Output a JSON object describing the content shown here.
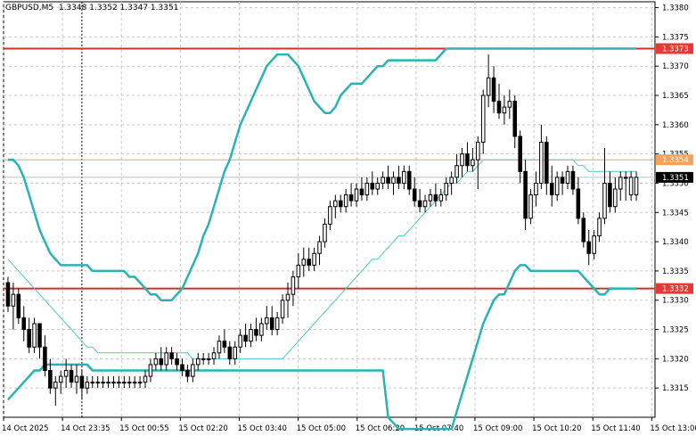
{
  "title": "GBPUSD,M5  1.3348 1.3352 1.3347 1.3351",
  "chart_data": {
    "type": "candlestick",
    "symbol": "GBPUSD",
    "timeframe": "M5",
    "ohlc_header": {
      "open": 1.3348,
      "high": 1.3352,
      "low": 1.3347,
      "close": 1.3351
    },
    "ylim": [
      1.331,
      1.3381
    ],
    "y_ticks": [
      "1.3315",
      "1.3320",
      "1.3325",
      "1.3330",
      "1.3335",
      "1.3340",
      "1.3345",
      "1.3350",
      "1.3355",
      "1.3360",
      "1.3365",
      "1.3370",
      "1.3375",
      "1.3380"
    ],
    "x_ticks": [
      "14 Oct 2025",
      "14 Oct 23:35",
      "15 Oct 00:55",
      "15 Oct 02:20",
      "15 Oct 03:40",
      "15 Oct 05:00",
      "15 Oct 06:20",
      "15 Oct 07:40",
      "15 Oct 09:00",
      "15 Oct 10:20",
      "15 Oct 11:40",
      "15 Oct 13:00"
    ],
    "bar_count": 120,
    "price_labels": [
      {
        "value": 1.3373,
        "text": "1.3373",
        "color": "#e53935"
      },
      {
        "value": 1.3354,
        "text": "1.3354",
        "color": "#f5a25d"
      },
      {
        "value": 1.3351,
        "text": "1.3351",
        "color": "#000000"
      },
      {
        "value": 1.3332,
        "text": "1.3332",
        "color": "#e53935"
      }
    ],
    "levels": [
      {
        "value": 1.3373,
        "color": "#d32f2f",
        "width": 2
      },
      {
        "value": 1.3354,
        "color": "#f5a25d",
        "width": 1
      },
      {
        "value": 1.3351,
        "color": "#b0c4c8",
        "width": 1
      },
      {
        "value": 1.3332,
        "color": "#d32f2f",
        "width": 2
      }
    ],
    "crosshair_bar": 14,
    "candles": [
      [
        1.3333,
        1.3334,
        1.3328,
        1.3329
      ],
      [
        1.3329,
        1.3333,
        1.3325,
        1.3331
      ],
      [
        1.3331,
        1.3332,
        1.3326,
        1.3327
      ],
      [
        1.3327,
        1.3329,
        1.3323,
        1.3325
      ],
      [
        1.3325,
        1.3327,
        1.3321,
        1.3322
      ],
      [
        1.3322,
        1.3327,
        1.3321,
        1.3326
      ],
      [
        1.3326,
        1.3326,
        1.332,
        1.3322
      ],
      [
        1.3322,
        1.3324,
        1.3317,
        1.3318
      ],
      [
        1.3318,
        1.332,
        1.3314,
        1.3315
      ],
      [
        1.3315,
        1.3317,
        1.3312,
        1.3316
      ],
      [
        1.3316,
        1.3318,
        1.3314,
        1.3317
      ],
      [
        1.3317,
        1.332,
        1.3315,
        1.3318
      ],
      [
        1.3318,
        1.3319,
        1.3315,
        1.3316
      ],
      [
        1.3316,
        1.3319,
        1.3314,
        1.3317
      ],
      [
        1.3317,
        1.3318,
        1.3313,
        1.3315
      ],
      [
        1.3315,
        1.3317,
        1.3314,
        1.3316
      ],
      [
        1.3316,
        1.3317,
        1.3315,
        1.3316
      ],
      [
        1.3316,
        1.3317,
        1.3315,
        1.3316
      ],
      [
        1.3316,
        1.3317,
        1.3315,
        1.3316
      ],
      [
        1.3316,
        1.3317,
        1.3315,
        1.3316
      ],
      [
        1.3316,
        1.3317,
        1.3315,
        1.3316
      ],
      [
        1.3316,
        1.3317,
        1.3315,
        1.3316
      ],
      [
        1.3316,
        1.3317,
        1.3315,
        1.3316
      ],
      [
        1.3316,
        1.3317,
        1.3315,
        1.3316
      ],
      [
        1.3316,
        1.3317,
        1.3315,
        1.3316
      ],
      [
        1.3316,
        1.3317,
        1.3315,
        1.3316
      ],
      [
        1.3316,
        1.3318,
        1.3315,
        1.3317
      ],
      [
        1.3317,
        1.332,
        1.3316,
        1.3319
      ],
      [
        1.3319,
        1.3321,
        1.3318,
        1.332
      ],
      [
        1.332,
        1.3322,
        1.3318,
        1.3319
      ],
      [
        1.3319,
        1.3322,
        1.3318,
        1.3321
      ],
      [
        1.3321,
        1.3322,
        1.3319,
        1.332
      ],
      [
        1.332,
        1.3321,
        1.3318,
        1.3319
      ],
      [
        1.3319,
        1.332,
        1.3317,
        1.3318
      ],
      [
        1.3318,
        1.3319,
        1.3316,
        1.3317
      ],
      [
        1.3317,
        1.332,
        1.3316,
        1.3319
      ],
      [
        1.3319,
        1.3321,
        1.3318,
        1.332
      ],
      [
        1.332,
        1.3321,
        1.3319,
        1.332
      ],
      [
        1.332,
        1.3321,
        1.3319,
        1.332
      ],
      [
        1.332,
        1.3322,
        1.3319,
        1.3321
      ],
      [
        1.3321,
        1.3324,
        1.332,
        1.3323
      ],
      [
        1.3323,
        1.3325,
        1.3321,
        1.3322
      ],
      [
        1.3322,
        1.3323,
        1.3319,
        1.332
      ],
      [
        1.332,
        1.3323,
        1.3319,
        1.3322
      ],
      [
        1.3322,
        1.3325,
        1.3321,
        1.3324
      ],
      [
        1.3324,
        1.3326,
        1.3322,
        1.3323
      ],
      [
        1.3323,
        1.3326,
        1.3322,
        1.3325
      ],
      [
        1.3325,
        1.3327,
        1.3323,
        1.3324
      ],
      [
        1.3324,
        1.3327,
        1.3323,
        1.3326
      ],
      [
        1.3326,
        1.3329,
        1.3325,
        1.3327
      ],
      [
        1.3327,
        1.3329,
        1.3324,
        1.3325
      ],
      [
        1.3325,
        1.3328,
        1.3324,
        1.3327
      ],
      [
        1.3327,
        1.3331,
        1.3326,
        1.333
      ],
      [
        1.333,
        1.3333,
        1.3327,
        1.3331
      ],
      [
        1.3331,
        1.3335,
        1.3329,
        1.3334
      ],
      [
        1.3334,
        1.3338,
        1.3332,
        1.3336
      ],
      [
        1.3336,
        1.3339,
        1.3334,
        1.3337
      ],
      [
        1.3337,
        1.3339,
        1.3335,
        1.3336
      ],
      [
        1.3336,
        1.3339,
        1.3335,
        1.3338
      ],
      [
        1.3338,
        1.3341,
        1.3336,
        1.334
      ],
      [
        1.334,
        1.3344,
        1.3339,
        1.3343
      ],
      [
        1.3343,
        1.3347,
        1.3342,
        1.3346
      ],
      [
        1.3346,
        1.3348,
        1.3344,
        1.3347
      ],
      [
        1.3347,
        1.3348,
        1.3345,
        1.3346
      ],
      [
        1.3346,
        1.3349,
        1.3345,
        1.3348
      ],
      [
        1.3348,
        1.335,
        1.3346,
        1.3347
      ],
      [
        1.3347,
        1.335,
        1.3346,
        1.3349
      ],
      [
        1.3349,
        1.3351,
        1.3347,
        1.3348
      ],
      [
        1.3348,
        1.3351,
        1.3347,
        1.335
      ],
      [
        1.335,
        1.3352,
        1.3348,
        1.3349
      ],
      [
        1.3349,
        1.3351,
        1.3348,
        1.335
      ],
      [
        1.335,
        1.3352,
        1.3349,
        1.3351
      ],
      [
        1.3351,
        1.3353,
        1.3349,
        1.335
      ],
      [
        1.335,
        1.3352,
        1.3348,
        1.3351
      ],
      [
        1.3351,
        1.3353,
        1.3349,
        1.335
      ],
      [
        1.335,
        1.3353,
        1.3349,
        1.3352
      ],
      [
        1.3352,
        1.3353,
        1.3348,
        1.3349
      ],
      [
        1.3349,
        1.3351,
        1.3346,
        1.3347
      ],
      [
        1.3347,
        1.3349,
        1.3345,
        1.3346
      ],
      [
        1.3346,
        1.3348,
        1.3345,
        1.3347
      ],
      [
        1.3347,
        1.3349,
        1.3346,
        1.3348
      ],
      [
        1.3348,
        1.335,
        1.3346,
        1.3347
      ],
      [
        1.3347,
        1.3349,
        1.3346,
        1.3348
      ],
      [
        1.3348,
        1.3351,
        1.3347,
        1.335
      ],
      [
        1.335,
        1.3352,
        1.3348,
        1.3351
      ],
      [
        1.3351,
        1.3355,
        1.335,
        1.3353
      ],
      [
        1.3353,
        1.3356,
        1.3351,
        1.3355
      ],
      [
        1.3355,
        1.3357,
        1.3352,
        1.3353
      ],
      [
        1.3353,
        1.3356,
        1.3352,
        1.3354
      ],
      [
        1.3354,
        1.3358,
        1.3349,
        1.3357
      ],
      [
        1.3357,
        1.3366,
        1.3355,
        1.3365
      ],
      [
        1.3365,
        1.3372,
        1.3363,
        1.3368
      ],
      [
        1.3368,
        1.337,
        1.3362,
        1.3364
      ],
      [
        1.3364,
        1.3367,
        1.3361,
        1.3362
      ],
      [
        1.3362,
        1.3365,
        1.336,
        1.3363
      ],
      [
        1.3363,
        1.3366,
        1.3361,
        1.3364
      ],
      [
        1.3364,
        1.3365,
        1.3356,
        1.3358
      ],
      [
        1.3358,
        1.3359,
        1.335,
        1.3352
      ],
      [
        1.3352,
        1.3354,
        1.3342,
        1.3344
      ],
      [
        1.3344,
        1.3349,
        1.3343,
        1.3348
      ],
      [
        1.3348,
        1.3352,
        1.3346,
        1.335
      ],
      [
        1.335,
        1.336,
        1.3349,
        1.3357
      ],
      [
        1.3357,
        1.3358,
        1.3348,
        1.335
      ],
      [
        1.335,
        1.3353,
        1.3346,
        1.3348
      ],
      [
        1.3348,
        1.3352,
        1.3347,
        1.3351
      ],
      [
        1.3351,
        1.3352,
        1.3348,
        1.335
      ],
      [
        1.335,
        1.3353,
        1.3349,
        1.3352
      ],
      [
        1.3352,
        1.3353,
        1.3348,
        1.3349
      ],
      [
        1.3349,
        1.3351,
        1.3343,
        1.3344
      ],
      [
        1.3344,
        1.3345,
        1.3339,
        1.334
      ],
      [
        1.334,
        1.3342,
        1.3336,
        1.3338
      ],
      [
        1.3338,
        1.3342,
        1.3337,
        1.3341
      ],
      [
        1.3341,
        1.3345,
        1.334,
        1.3344
      ],
      [
        1.3344,
        1.3356,
        1.3343,
        1.335
      ],
      [
        1.335,
        1.3352,
        1.3345,
        1.3346
      ],
      [
        1.3346,
        1.3351,
        1.3345,
        1.3349
      ],
      [
        1.3349,
        1.3352,
        1.3347,
        1.3351
      ],
      [
        1.3351,
        1.3352,
        1.3347,
        1.3351
      ],
      [
        1.3348,
        1.3352,
        1.3347,
        1.3351
      ],
      [
        1.3348,
        1.3352,
        1.3347,
        1.3351
      ]
    ],
    "sma": [
      1.3337,
      1.3336,
      1.3335,
      1.3334,
      1.3333,
      1.3332,
      1.3331,
      1.333,
      1.3329,
      1.3328,
      1.3327,
      1.3326,
      1.3325,
      1.3324,
      1.3323,
      1.3322,
      1.3322,
      1.3321,
      1.3321,
      1.3321,
      1.3321,
      1.3321,
      1.3321,
      1.3321,
      1.3321,
      1.3321,
      1.3321,
      1.3321,
      1.3321,
      1.3321,
      1.3321,
      1.3321,
      1.3321,
      1.3321,
      1.3321,
      1.332,
      1.332,
      1.332,
      1.332,
      1.332,
      1.332,
      1.332,
      1.332,
      1.332,
      1.332,
      1.332,
      1.332,
      1.332,
      1.332,
      1.332,
      1.332,
      1.332,
      1.332,
      1.3321,
      1.3322,
      1.3323,
      1.3324,
      1.3325,
      1.3326,
      1.3327,
      1.3328,
      1.3329,
      1.333,
      1.3331,
      1.3332,
      1.3333,
      1.3334,
      1.3335,
      1.3336,
      1.3337,
      1.3337,
      1.3338,
      1.3339,
      1.334,
      1.3341,
      1.3341,
      1.3342,
      1.3343,
      1.3344,
      1.3345,
      1.3346,
      1.3347,
      1.3348,
      1.3349,
      1.335,
      1.335,
      1.3351,
      1.3352,
      1.3352,
      1.3353,
      1.3354,
      1.3354,
      1.3354,
      1.3354,
      1.3354,
      1.3354,
      1.3354,
      1.3354,
      1.3354,
      1.3354,
      1.3354,
      1.3354,
      1.3354,
      1.3354,
      1.3354,
      1.3354,
      1.3354,
      1.3354,
      1.3353,
      1.3353,
      1.3352,
      1.3352,
      1.3352,
      1.3352,
      1.3352,
      1.3352,
      1.3352,
      1.3352,
      1.3352,
      1.3352
    ],
    "upper_band": [
      1.3354,
      1.3354,
      1.3353,
      1.3351,
      1.3348,
      1.3345,
      1.3342,
      1.334,
      1.3338,
      1.3337,
      1.3336,
      1.3336,
      1.3336,
      1.3336,
      1.3336,
      1.3336,
      1.3335,
      1.3335,
      1.3335,
      1.3335,
      1.3335,
      1.3335,
      1.3335,
      1.3334,
      1.3334,
      1.3333,
      1.3332,
      1.3331,
      1.3331,
      1.333,
      1.333,
      1.333,
      1.3331,
      1.3332,
      1.3334,
      1.3336,
      1.3338,
      1.3341,
      1.3343,
      1.3346,
      1.3349,
      1.3352,
      1.3354,
      1.3357,
      1.336,
      1.3362,
      1.3364,
      1.3366,
      1.3368,
      1.337,
      1.3371,
      1.3372,
      1.3372,
      1.3372,
      1.3371,
      1.337,
      1.3368,
      1.3366,
      1.3364,
      1.3363,
      1.3362,
      1.3362,
      1.3363,
      1.3365,
      1.3366,
      1.3367,
      1.3367,
      1.3367,
      1.3368,
      1.3369,
      1.337,
      1.337,
      1.3371,
      1.3371,
      1.3371,
      1.3371,
      1.3371,
      1.3371,
      1.3371,
      1.3371,
      1.3371,
      1.3371,
      1.3372,
      1.3373,
      1.3373,
      1.3373,
      1.3373,
      1.3373,
      1.3373,
      1.3373,
      1.3373,
      1.3373,
      1.3373,
      1.3373,
      1.3373,
      1.3373,
      1.3373,
      1.3373,
      1.3373,
      1.3373,
      1.3373,
      1.3373,
      1.3373,
      1.3373,
      1.3373,
      1.3373,
      1.3373,
      1.3373,
      1.3373,
      1.3373,
      1.3373,
      1.3373,
      1.3373,
      1.3373,
      1.3373,
      1.3373,
      1.3373,
      1.3373,
      1.3373,
      1.3373
    ],
    "lower_band": [
      1.3313,
      1.3314,
      1.3315,
      1.3316,
      1.3317,
      1.3318,
      1.3318,
      1.3319,
      1.3319,
      1.3319,
      1.3319,
      1.3319,
      1.3319,
      1.3319,
      1.3319,
      1.3319,
      1.3318,
      1.3318,
      1.3318,
      1.3318,
      1.3318,
      1.3318,
      1.3318,
      1.3318,
      1.3318,
      1.3318,
      1.3318,
      1.3318,
      1.3318,
      1.3318,
      1.3318,
      1.3318,
      1.3318,
      1.3318,
      1.3318,
      1.3318,
      1.3318,
      1.3318,
      1.3318,
      1.3318,
      1.3318,
      1.3318,
      1.3318,
      1.3318,
      1.3318,
      1.3318,
      1.3318,
      1.3318,
      1.3318,
      1.3318,
      1.3318,
      1.3318,
      1.3318,
      1.3318,
      1.3318,
      1.3318,
      1.3318,
      1.3318,
      1.3318,
      1.3318,
      1.3318,
      1.3318,
      1.3318,
      1.3318,
      1.3318,
      1.3318,
      1.3318,
      1.3318,
      1.3318,
      1.3318,
      1.3318,
      1.3318,
      1.331,
      1.3309,
      1.3308,
      1.3308,
      1.3308,
      1.3308,
      1.3308,
      1.3308,
      1.3308,
      1.3308,
      1.3308,
      1.3308,
      1.3308,
      1.3311,
      1.3314,
      1.3317,
      1.332,
      1.3323,
      1.3326,
      1.3328,
      1.333,
      1.3331,
      1.3331,
      1.3333,
      1.3335,
      1.3336,
      1.3336,
      1.3335,
      1.3335,
      1.3335,
      1.3335,
      1.3335,
      1.3335,
      1.3335,
      1.3335,
      1.3335,
      1.3335,
      1.3334,
      1.3333,
      1.3332,
      1.3331,
      1.3331,
      1.3332,
      1.3332,
      1.3332,
      1.3332,
      1.3332,
      1.3332
    ]
  }
}
